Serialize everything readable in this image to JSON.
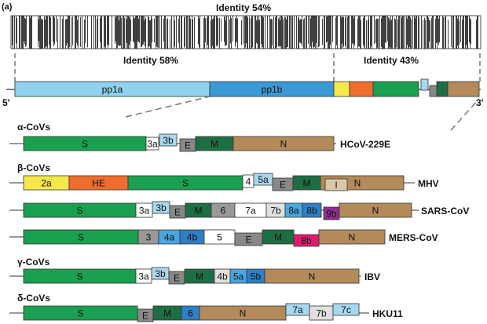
{
  "corner_label": "(a)",
  "identity": {
    "top": "Identity 54%",
    "left": "Identity 58%",
    "right": "Identity 43%"
  },
  "genome_ends": {
    "five": "5'",
    "three": "3'"
  },
  "genome": {
    "pp1a": "pp1a",
    "pp1b": "pp1b",
    "colors": {
      "pp1a": "#8fd1ee",
      "pp1b": "#3a9ad8",
      "yellow": "#f6e84a",
      "orange": "#ef6d2d",
      "green": "#1aa050",
      "lightblue": "#a8d8ef",
      "grey": "#888888",
      "dkgreen": "#1e6e44",
      "tan": "#b38b5a"
    }
  },
  "groups": [
    {
      "header": "α-CoVs",
      "virus": "HCoV-229E",
      "genes": [
        {
          "name": "S",
          "color": "#1aa050"
        },
        {
          "name": "3a",
          "color": "#ffffff"
        },
        {
          "name": "3b",
          "color": "#a8d8ef"
        },
        {
          "name": "E",
          "color": "#888888"
        },
        {
          "name": "M",
          "color": "#1e6e44"
        },
        {
          "name": "N",
          "color": "#b38b5a"
        }
      ]
    },
    {
      "header": "β-CoVs",
      "virus": "MHV",
      "genes": [
        {
          "name": "2a",
          "color": "#f6e84a"
        },
        {
          "name": "HE",
          "color": "#ef6d2d"
        },
        {
          "name": "S",
          "color": "#1aa050"
        },
        {
          "name": "4",
          "color": "#ffffff"
        },
        {
          "name": "5a",
          "color": "#a8d8ef"
        },
        {
          "name": "E",
          "color": "#888888"
        },
        {
          "name": "M",
          "color": "#1e6e44"
        },
        {
          "name": "N",
          "color": "#b38b5a"
        },
        {
          "name": "I",
          "color": "#d8c8a8"
        }
      ]
    },
    {
      "header": "",
      "virus": "SARS-CoV",
      "genes": [
        {
          "name": "S",
          "color": "#1aa050"
        },
        {
          "name": "3a",
          "color": "#ffffff"
        },
        {
          "name": "3b",
          "color": "#a8d8ef"
        },
        {
          "name": "E",
          "color": "#888888"
        },
        {
          "name": "M",
          "color": "#1e6e44"
        },
        {
          "name": "6",
          "color": "#999999"
        },
        {
          "name": "7a",
          "color": "#ffffff"
        },
        {
          "name": "7b",
          "color": "#e0e0e0"
        },
        {
          "name": "8a",
          "color": "#4aa6de"
        },
        {
          "name": "8b",
          "color": "#2f7fc4"
        },
        {
          "name": "9b",
          "color": "#8e2e8e"
        },
        {
          "name": "N",
          "color": "#b38b5a"
        }
      ]
    },
    {
      "header": "",
      "virus": "MERS-CoV",
      "genes": [
        {
          "name": "S",
          "color": "#1aa050"
        },
        {
          "name": "3",
          "color": "#999999"
        },
        {
          "name": "4a",
          "color": "#4aa6de"
        },
        {
          "name": "4b",
          "color": "#2f7fc4"
        },
        {
          "name": "5",
          "color": "#ffffff"
        },
        {
          "name": "E",
          "color": "#888888"
        },
        {
          "name": "M",
          "color": "#1e6e44"
        },
        {
          "name": "8b",
          "color": "#e01a6e"
        },
        {
          "name": "N",
          "color": "#b38b5a"
        }
      ]
    },
    {
      "header": "γ-CoVs",
      "virus": "IBV",
      "genes": [
        {
          "name": "S",
          "color": "#1aa050"
        },
        {
          "name": "3a",
          "color": "#ffffff"
        },
        {
          "name": "3b",
          "color": "#a8d8ef"
        },
        {
          "name": "E",
          "color": "#888888"
        },
        {
          "name": "M",
          "color": "#1e6e44"
        },
        {
          "name": "4b",
          "color": "#e0e0e0"
        },
        {
          "name": "5a",
          "color": "#4aa6de"
        },
        {
          "name": "5b",
          "color": "#2f7fc4"
        },
        {
          "name": "N",
          "color": "#b38b5a"
        }
      ]
    },
    {
      "header": "δ-CoVs",
      "virus": "HKU11",
      "genes": [
        {
          "name": "S",
          "color": "#1aa050"
        },
        {
          "name": "E",
          "color": "#888888"
        },
        {
          "name": "M",
          "color": "#1e6e44"
        },
        {
          "name": "6",
          "color": "#2f7fc4"
        },
        {
          "name": "N",
          "color": "#b38b5a"
        },
        {
          "name": "7a",
          "color": "#a8d8ef"
        },
        {
          "name": "7b",
          "color": "#e0e0e0"
        },
        {
          "name": "7c",
          "color": "#a8d8ef"
        }
      ]
    }
  ]
}
